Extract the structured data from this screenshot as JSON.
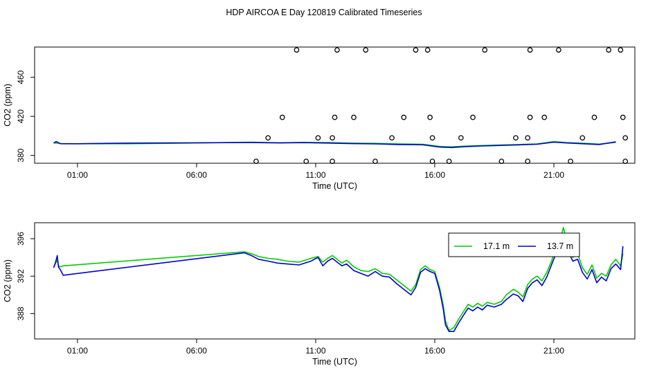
{
  "figure": {
    "title": "HDP AIRCOA E  Day 120819  Calibrated Timeseries"
  },
  "chart_data": [
    {
      "type": "line",
      "title": "",
      "xlabel": "Time (UTC)",
      "ylabel": "CO2 (ppm)",
      "xlim": [
        -0.8,
        24.4
      ],
      "ylim": [
        372,
        491
      ],
      "x_ticks": [
        1,
        6,
        11,
        16,
        21
      ],
      "x_tick_labels": [
        "01:00",
        "06:00",
        "11:00",
        "16:00",
        "21:00"
      ],
      "y_ticks": [
        380,
        420,
        460
      ],
      "y_tick_labels": [
        "380",
        "420",
        "460"
      ],
      "grid": false,
      "series": [
        {
          "color": "#00cc00",
          "points": [
            [
              0.0,
              393.0
            ],
            [
              0.3,
              392.2
            ],
            [
              1.0,
              392.0
            ],
            [
              3.0,
              392.0
            ],
            [
              5.5,
              392.6
            ],
            [
              8.3,
              393.5
            ],
            [
              9.5,
              393.0
            ],
            [
              10.5,
              393.4
            ],
            [
              11.5,
              393.2
            ],
            [
              12.5,
              392.6
            ],
            [
              13.5,
              392.4
            ],
            [
              14.5,
              391.8
            ],
            [
              15.5,
              391.4
            ],
            [
              16.2,
              389.2
            ],
            [
              16.7,
              388.8
            ],
            [
              17.3,
              389.6
            ],
            [
              18.0,
              390.2
            ],
            [
              18.8,
              390.8
            ],
            [
              19.5,
              391.2
            ],
            [
              20.3,
              391.8
            ],
            [
              21.0,
              394.2
            ],
            [
              21.5,
              393.2
            ],
            [
              22.3,
              392.4
            ],
            [
              22.9,
              391.6
            ],
            [
              23.6,
              393.4
            ]
          ]
        },
        {
          "color": "#0000cc",
          "points": [
            [
              0.0,
              392.6
            ],
            [
              0.1,
              394.2
            ],
            [
              0.3,
              392.0
            ],
            [
              1.0,
              392.0
            ],
            [
              3.0,
              392.6
            ],
            [
              5.5,
              392.9
            ],
            [
              8.3,
              393.2
            ],
            [
              9.5,
              392.8
            ],
            [
              10.5,
              393.1
            ],
            [
              11.5,
              392.7
            ],
            [
              12.5,
              392.1
            ],
            [
              13.5,
              391.8
            ],
            [
              14.5,
              391.2
            ],
            [
              15.5,
              390.9
            ],
            [
              16.2,
              388.6
            ],
            [
              16.7,
              388.1
            ],
            [
              17.3,
              389.1
            ],
            [
              18.0,
              389.7
            ],
            [
              18.8,
              390.3
            ],
            [
              19.5,
              390.8
            ],
            [
              20.3,
              391.5
            ],
            [
              21.0,
              393.6
            ],
            [
              21.5,
              392.8
            ],
            [
              22.3,
              391.9
            ],
            [
              22.9,
              391.2
            ],
            [
              23.6,
              393.9
            ]
          ]
        }
      ],
      "markers": {
        "shape": "circle",
        "points": [
          [
            8.5,
            374
          ],
          [
            9.0,
            398
          ],
          [
            9.6,
            419
          ],
          [
            10.2,
            488
          ],
          [
            10.6,
            374
          ],
          [
            11.1,
            398
          ],
          [
            11.7,
            398
          ],
          [
            11.8,
            419
          ],
          [
            11.9,
            488
          ],
          [
            11.7,
            374
          ],
          [
            12.6,
            419
          ],
          [
            13.1,
            488
          ],
          [
            13.5,
            374
          ],
          [
            14.2,
            398
          ],
          [
            14.7,
            419
          ],
          [
            15.2,
            488
          ],
          [
            15.7,
            488
          ],
          [
            15.8,
            419
          ],
          [
            15.9,
            398
          ],
          [
            15.9,
            374
          ],
          [
            16.6,
            374
          ],
          [
            17.1,
            398
          ],
          [
            17.6,
            419
          ],
          [
            18.1,
            488
          ],
          [
            18.8,
            374
          ],
          [
            19.4,
            398
          ],
          [
            19.9,
            398
          ],
          [
            19.9,
            374
          ],
          [
            20.0,
            419
          ],
          [
            20.0,
            488
          ],
          [
            20.6,
            419
          ],
          [
            21.2,
            488
          ],
          [
            21.7,
            374
          ],
          [
            22.2,
            398
          ],
          [
            22.7,
            419
          ],
          [
            23.3,
            488
          ],
          [
            23.8,
            488
          ],
          [
            23.9,
            419
          ],
          [
            24.0,
            398
          ],
          [
            24.0,
            374
          ]
        ]
      }
    },
    {
      "type": "line",
      "title": "",
      "xlabel": "Time (UTC)",
      "ylabel": "CO2 (ppm)",
      "xlim": [
        -0.8,
        24.4
      ],
      "ylim": [
        385.3,
        397.7
      ],
      "x_ticks": [
        1,
        6,
        11,
        16,
        21
      ],
      "x_tick_labels": [
        "01:00",
        "06:00",
        "11:00",
        "16:00",
        "21:00"
      ],
      "y_ticks": [
        388,
        392,
        396
      ],
      "y_tick_labels": [
        "388",
        "392",
        "396"
      ],
      "grid": false,
      "legend": {
        "position": "top-right",
        "entries": [
          {
            "label": "17.1 m",
            "color": "#00cc00"
          },
          {
            "label": "13.7 m",
            "color": "#0000cc"
          }
        ]
      },
      "series": [
        {
          "name": "17.1 m",
          "color": "#00cc00",
          "points": [
            [
              0.0,
              392.9
            ],
            [
              0.08,
              393.4
            ],
            [
              0.15,
              393.7
            ],
            [
              0.2,
              393.1
            ],
            [
              0.3,
              393.0
            ],
            [
              0.4,
              393.1
            ],
            [
              8.0,
              394.6
            ],
            [
              8.3,
              394.4
            ],
            [
              8.6,
              394.1
            ],
            [
              9.0,
              393.9
            ],
            [
              9.4,
              393.8
            ],
            [
              9.8,
              393.6
            ],
            [
              10.3,
              393.5
            ],
            [
              10.8,
              393.9
            ],
            [
              11.1,
              394.1
            ],
            [
              11.3,
              393.5
            ],
            [
              11.5,
              393.9
            ],
            [
              11.7,
              394.2
            ],
            [
              11.9,
              393.8
            ],
            [
              12.1,
              393.4
            ],
            [
              12.3,
              393.7
            ],
            [
              12.6,
              393.0
            ],
            [
              12.9,
              392.6
            ],
            [
              13.2,
              392.5
            ],
            [
              13.5,
              392.8
            ],
            [
              13.8,
              392.3
            ],
            [
              14.1,
              392.2
            ],
            [
              14.4,
              391.6
            ],
            [
              14.7,
              391.0
            ],
            [
              15.0,
              390.4
            ],
            [
              15.2,
              391.1
            ],
            [
              15.4,
              392.7
            ],
            [
              15.6,
              393.1
            ],
            [
              15.8,
              392.7
            ],
            [
              16.0,
              392.5
            ],
            [
              16.2,
              390.8
            ],
            [
              16.35,
              389.0
            ],
            [
              16.45,
              387.2
            ],
            [
              16.6,
              386.2
            ],
            [
              16.8,
              386.5
            ],
            [
              17.0,
              387.4
            ],
            [
              17.2,
              388.2
            ],
            [
              17.4,
              389.0
            ],
            [
              17.6,
              388.7
            ],
            [
              17.8,
              389.1
            ],
            [
              18.0,
              388.8
            ],
            [
              18.2,
              389.2
            ],
            [
              18.5,
              389.0
            ],
            [
              18.8,
              389.3
            ],
            [
              19.0,
              390.0
            ],
            [
              19.3,
              390.6
            ],
            [
              19.5,
              390.3
            ],
            [
              19.7,
              389.8
            ],
            [
              19.9,
              391.1
            ],
            [
              20.1,
              391.7
            ],
            [
              20.3,
              392.0
            ],
            [
              20.5,
              391.5
            ],
            [
              20.7,
              392.4
            ],
            [
              20.9,
              393.6
            ],
            [
              21.1,
              395.1
            ],
            [
              21.3,
              396.2
            ],
            [
              21.4,
              397.2
            ],
            [
              21.6,
              395.1
            ],
            [
              21.8,
              394.0
            ],
            [
              22.0,
              394.4
            ],
            [
              22.2,
              392.9
            ],
            [
              22.4,
              392.2
            ],
            [
              22.6,
              393.2
            ],
            [
              22.8,
              391.8
            ],
            [
              23.0,
              392.3
            ],
            [
              23.2,
              392.0
            ],
            [
              23.4,
              393.2
            ],
            [
              23.6,
              393.8
            ],
            [
              23.8,
              393.1
            ],
            [
              23.9,
              394.4
            ]
          ]
        },
        {
          "name": "13.7 m",
          "color": "#0000cc",
          "points": [
            [
              0.0,
              392.9
            ],
            [
              0.08,
              393.5
            ],
            [
              0.15,
              394.2
            ],
            [
              0.2,
              393.0
            ],
            [
              0.3,
              392.6
            ],
            [
              0.4,
              392.1
            ],
            [
              8.0,
              394.5
            ],
            [
              8.3,
              394.2
            ],
            [
              8.6,
              393.8
            ],
            [
              9.0,
              393.6
            ],
            [
              9.4,
              393.4
            ],
            [
              9.8,
              393.3
            ],
            [
              10.3,
              393.2
            ],
            [
              10.8,
              393.6
            ],
            [
              11.1,
              394.0
            ],
            [
              11.3,
              393.1
            ],
            [
              11.5,
              393.6
            ],
            [
              11.7,
              393.9
            ],
            [
              11.9,
              393.5
            ],
            [
              12.1,
              393.1
            ],
            [
              12.3,
              393.3
            ],
            [
              12.6,
              392.6
            ],
            [
              12.9,
              392.3
            ],
            [
              13.2,
              392.0
            ],
            [
              13.5,
              392.5
            ],
            [
              13.8,
              392.0
            ],
            [
              14.1,
              391.9
            ],
            [
              14.4,
              391.2
            ],
            [
              14.7,
              390.6
            ],
            [
              15.0,
              390.0
            ],
            [
              15.2,
              390.8
            ],
            [
              15.4,
              392.4
            ],
            [
              15.6,
              392.8
            ],
            [
              15.8,
              392.5
            ],
            [
              16.0,
              392.3
            ],
            [
              16.2,
              390.5
            ],
            [
              16.35,
              388.6
            ],
            [
              16.45,
              386.8
            ],
            [
              16.6,
              386.1
            ],
            [
              16.8,
              386.1
            ],
            [
              17.0,
              387.0
            ],
            [
              17.2,
              387.8
            ],
            [
              17.4,
              388.6
            ],
            [
              17.6,
              388.3
            ],
            [
              17.8,
              388.7
            ],
            [
              18.0,
              388.4
            ],
            [
              18.2,
              388.9
            ],
            [
              18.5,
              388.7
            ],
            [
              18.8,
              389.0
            ],
            [
              19.0,
              389.5
            ],
            [
              19.3,
              390.1
            ],
            [
              19.5,
              389.9
            ],
            [
              19.7,
              389.3
            ],
            [
              19.9,
              390.7
            ],
            [
              20.1,
              391.3
            ],
            [
              20.3,
              391.6
            ],
            [
              20.5,
              391.0
            ],
            [
              20.7,
              391.9
            ],
            [
              20.9,
              393.2
            ],
            [
              21.1,
              394.5
            ],
            [
              21.3,
              395.5
            ],
            [
              21.4,
              396.0
            ],
            [
              21.6,
              394.6
            ],
            [
              21.8,
              393.6
            ],
            [
              22.0,
              393.8
            ],
            [
              22.2,
              392.4
            ],
            [
              22.4,
              391.7
            ],
            [
              22.6,
              392.7
            ],
            [
              22.8,
              391.3
            ],
            [
              23.0,
              391.9
            ],
            [
              23.2,
              391.5
            ],
            [
              23.4,
              392.8
            ],
            [
              23.6,
              393.3
            ],
            [
              23.8,
              392.7
            ],
            [
              23.9,
              395.2
            ]
          ]
        }
      ]
    }
  ]
}
